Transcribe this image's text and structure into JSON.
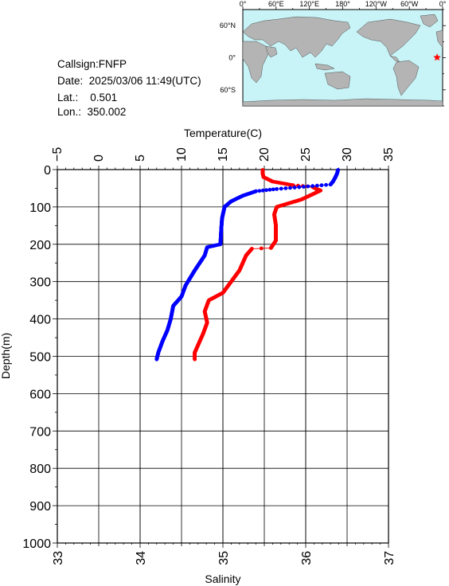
{
  "station": {
    "callsign_label": "Callsign:",
    "callsign": "FNFP",
    "date_label": "Date:",
    "date": "2025/03/06 11:49(UTC)",
    "lat_label": "Lat.:",
    "lat": "0.501",
    "lon_label": "Lon.:",
    "lon": "350.002"
  },
  "map": {
    "top_labels": [
      "0°",
      "60°E",
      "120°E",
      "180°",
      "120°W",
      "60°W",
      "0°"
    ],
    "side_labels": [
      "60°N",
      "0°",
      "60°S"
    ],
    "ocean_color": "#c8f4f8",
    "land_color": "#b4b4b4",
    "marker_color": "#ff0000",
    "marker_lon": 350.002,
    "marker_lat": 0.501
  },
  "chart_data": {
    "type": "line",
    "title": "",
    "temperature_axis": {
      "label": "Temperature(C)",
      "range": [
        -5,
        35
      ],
      "ticks": [
        -5,
        0,
        5,
        10,
        15,
        20,
        25,
        30,
        35
      ],
      "tick_labels": [
        "−5",
        "0",
        "5",
        "10",
        "15",
        "20",
        "25",
        "30",
        "35"
      ]
    },
    "salinity_axis": {
      "label": "Salinity",
      "range": [
        33,
        37
      ],
      "ticks": [
        33,
        34,
        35,
        36,
        37
      ],
      "tick_labels": [
        "33",
        "34",
        "35",
        "36",
        "37"
      ]
    },
    "depth_axis": {
      "label": "Depth(m)",
      "range": [
        0,
        1000
      ],
      "inverted": true,
      "ticks": [
        0,
        100,
        200,
        300,
        400,
        500,
        600,
        700,
        800,
        900,
        1000
      ],
      "tick_labels": [
        "0",
        "100",
        "200",
        "300",
        "400",
        "500",
        "600",
        "700",
        "800",
        "900",
        "1000"
      ]
    },
    "grid": true,
    "series": [
      {
        "quantity": "temperature",
        "color": "#ff0000",
        "points": [
          {
            "value": 19.8,
            "depth": 1
          },
          {
            "value": 19.8,
            "depth": 10
          },
          {
            "value": 19.9,
            "depth": 20
          },
          {
            "value": 21.0,
            "depth": 32
          },
          {
            "value": 23.5,
            "depth": 42
          },
          {
            "value": 25.8,
            "depth": 46
          },
          {
            "value": 26.3,
            "depth": 52
          },
          {
            "value": 26.8,
            "depth": 56
          },
          {
            "value": 24.5,
            "depth": 80
          },
          {
            "value": 21.5,
            "depth": 100
          },
          {
            "value": 21.2,
            "depth": 120
          },
          {
            "value": 21.4,
            "depth": 150
          },
          {
            "value": 21.4,
            "depth": 190
          },
          {
            "value": 20.8,
            "depth": 210
          },
          {
            "value": 18.5,
            "depth": 212
          },
          {
            "value": 17.8,
            "depth": 230
          },
          {
            "value": 17.0,
            "depth": 270
          },
          {
            "value": 16.0,
            "depth": 300
          },
          {
            "value": 15.0,
            "depth": 330
          },
          {
            "value": 13.3,
            "depth": 350
          },
          {
            "value": 12.8,
            "depth": 380
          },
          {
            "value": 13.1,
            "depth": 410
          },
          {
            "value": 12.6,
            "depth": 440
          },
          {
            "value": 12.0,
            "depth": 470
          },
          {
            "value": 11.6,
            "depth": 490
          },
          {
            "value": 11.6,
            "depth": 508
          }
        ]
      },
      {
        "quantity": "salinity",
        "color": "#0000ff",
        "points": [
          {
            "value": 36.39,
            "depth": 1
          },
          {
            "value": 36.38,
            "depth": 10
          },
          {
            "value": 36.36,
            "depth": 20
          },
          {
            "value": 36.33,
            "depth": 32
          },
          {
            "value": 36.3,
            "depth": 40
          },
          {
            "value": 35.65,
            "depth": 52
          },
          {
            "value": 35.4,
            "depth": 58
          },
          {
            "value": 35.24,
            "depth": 70
          },
          {
            "value": 35.1,
            "depth": 85
          },
          {
            "value": 35.02,
            "depth": 100
          },
          {
            "value": 34.99,
            "depth": 130
          },
          {
            "value": 34.98,
            "depth": 160
          },
          {
            "value": 34.97,
            "depth": 200
          },
          {
            "value": 34.81,
            "depth": 208
          },
          {
            "value": 34.78,
            "depth": 230
          },
          {
            "value": 34.66,
            "depth": 270
          },
          {
            "value": 34.55,
            "depth": 310
          },
          {
            "value": 34.5,
            "depth": 340
          },
          {
            "value": 34.4,
            "depth": 365
          },
          {
            "value": 34.37,
            "depth": 400
          },
          {
            "value": 34.33,
            "depth": 430
          },
          {
            "value": 34.27,
            "depth": 460
          },
          {
            "value": 34.22,
            "depth": 490
          },
          {
            "value": 34.2,
            "depth": 508
          }
        ]
      }
    ]
  }
}
